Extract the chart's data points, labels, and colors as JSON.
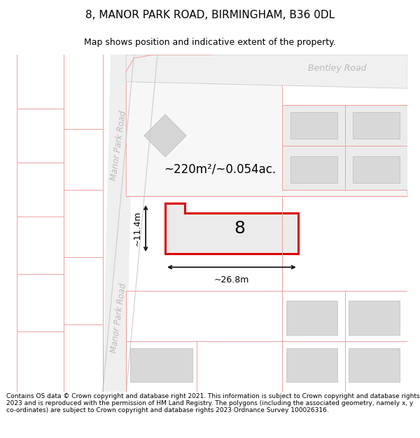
{
  "title": "8, MANOR PARK ROAD, BIRMINGHAM, B36 0DL",
  "subtitle": "Map shows position and indicative extent of the property.",
  "footer": "Contains OS data © Crown copyright and database right 2021. This information is subject to Crown copyright and database rights 2023 and is reproduced with the permission of HM Land Registry. The polygons (including the associated geometry, namely x, y co-ordinates) are subject to Crown copyright and database rights 2023 Ordnance Survey 100026316.",
  "area_label": "~220m²/~0.054ac.",
  "width_label": "~26.8m",
  "height_label": "~11.4m",
  "property_number": "8",
  "road_label_top": "Manor Park Road",
  "road_label_bottom": "Manor Park Road",
  "road_label_right": "Bentley Road",
  "bg_color": "#ffffff",
  "map_bg": "#ffffff",
  "road_strip_color": "#efefef",
  "road_border_color": "#cccccc",
  "pink_line_color": "#f0a0a0",
  "property_outline_color": "#dd0000",
  "property_fill": "#ebebeb",
  "building_fill": "#d8d8d8",
  "building_edge": "#bbbbbb",
  "dim_line_color": "#111111",
  "road_text_color": "#bbbbbb",
  "bentley_text_color": "#bbbbbb"
}
